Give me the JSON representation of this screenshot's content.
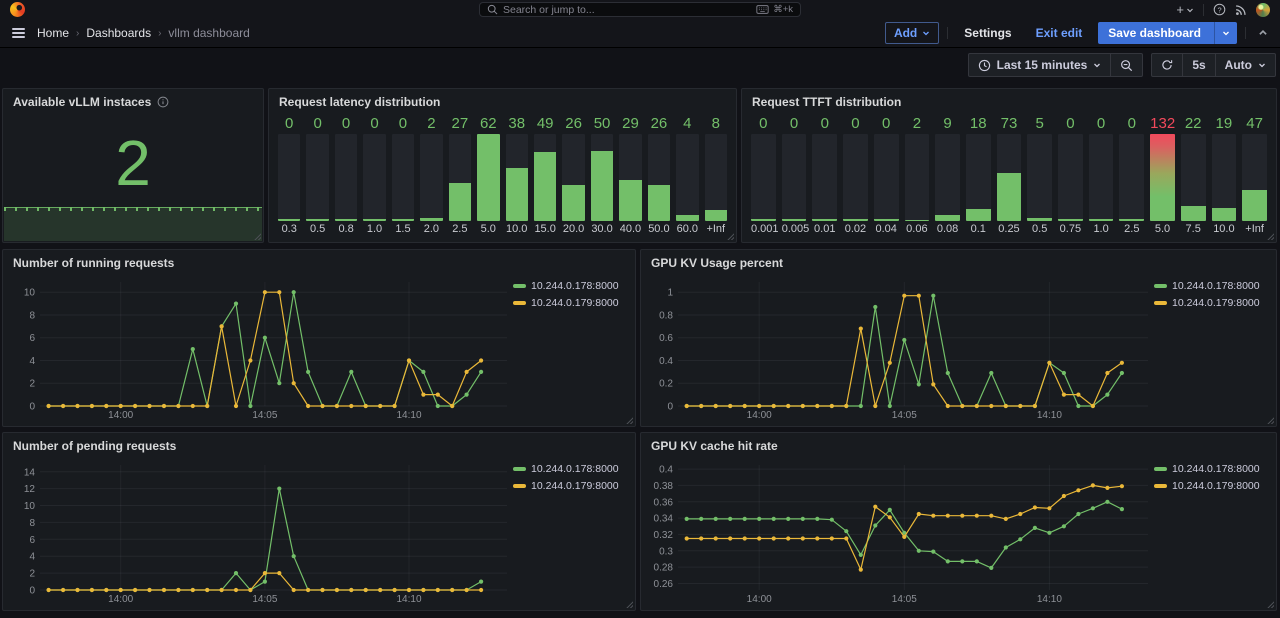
{
  "nav": {
    "search_placeholder": "Search or jump to...",
    "shortcut": "⌘+k",
    "breadcrumb": [
      "Home",
      "Dashboards",
      "vllm dashboard"
    ],
    "actions": {
      "add": "Add",
      "settings": "Settings",
      "exit_edit": "Exit edit",
      "save": "Save dashboard"
    }
  },
  "timebar": {
    "range": "Last 15 minutes",
    "interval": "5s",
    "auto": "Auto"
  },
  "colors": {
    "green": "#73BF69",
    "yellow": "#EAB839",
    "red": "#F2495C",
    "blue": "#3D71D9",
    "link_blue": "#6E9FFF",
    "panel_bg": "#181b1f",
    "canvas_bg": "#111217",
    "bar_track": "#22252b"
  },
  "chart_data": [
    {
      "type": "stat",
      "title": "Available vLLM instaces",
      "value": "2",
      "sparkline_value": 2,
      "color": "#73BF69"
    },
    {
      "type": "bar",
      "title": "Request latency distribution",
      "categories": [
        "0.3",
        "0.5",
        "0.8",
        "1.0",
        "1.5",
        "2.0",
        "2.5",
        "5.0",
        "10.0",
        "15.0",
        "20.0",
        "30.0",
        "40.0",
        "50.0",
        "60.0",
        "+Inf"
      ],
      "values": [
        0,
        0,
        0,
        0,
        0,
        2,
        27,
        62,
        38,
        49,
        26,
        50,
        29,
        26,
        4,
        8
      ],
      "max": 62,
      "gradient_index": -1,
      "bar_color": "#73BF69"
    },
    {
      "type": "bar",
      "title": "Request TTFT distribution",
      "categories": [
        "0.001",
        "0.005",
        "0.01",
        "0.02",
        "0.04",
        "0.06",
        "0.08",
        "0.1",
        "0.25",
        "0.5",
        "0.75",
        "1.0",
        "2.5",
        "5.0",
        "7.5",
        "10.0",
        "+Inf"
      ],
      "values": [
        0,
        0,
        0,
        0,
        0,
        2,
        9,
        18,
        73,
        5,
        0,
        0,
        0,
        132,
        22,
        19,
        47
      ],
      "max": 132,
      "gradient_index": 13,
      "bar_color": "#73BF69",
      "gradient_value_color": "#F2495C"
    },
    {
      "type": "line",
      "title": "Number of running requests",
      "x_start": -2.5,
      "x_step": 0.5,
      "x_domain": [
        -2.8,
        13.4
      ],
      "x_ticks": [
        {
          "v": 0,
          "label": "14:00"
        },
        {
          "v": 5,
          "label": "14:05"
        },
        {
          "v": 10,
          "label": "14:10"
        }
      ],
      "y_domain": [
        0,
        10.9
      ],
      "y_ticks": [
        {
          "v": 0,
          "label": "0"
        },
        {
          "v": 2,
          "label": "2"
        },
        {
          "v": 4,
          "label": "4"
        },
        {
          "v": 6,
          "label": "6"
        },
        {
          "v": 8,
          "label": "8"
        },
        {
          "v": 10,
          "label": "10"
        }
      ],
      "series": [
        {
          "name": "10.244.0.178:8000",
          "color": "#73BF69",
          "values": [
            0,
            0,
            0,
            0,
            0,
            0,
            0,
            0,
            0,
            0,
            5,
            0,
            7,
            9,
            0,
            6,
            2,
            10,
            3,
            0,
            0,
            3,
            0,
            0,
            0,
            4,
            3,
            0,
            0,
            1,
            3
          ]
        },
        {
          "name": "10.244.0.179:8000",
          "color": "#EAB839",
          "values": [
            0,
            0,
            0,
            0,
            0,
            0,
            0,
            0,
            0,
            0,
            0,
            0,
            7,
            0,
            4,
            10,
            10,
            2,
            0,
            0,
            0,
            0,
            0,
            0,
            0,
            4,
            1,
            1,
            0,
            3,
            4
          ]
        }
      ]
    },
    {
      "type": "line",
      "title": "GPU KV Usage percent",
      "x_start": -2.5,
      "x_step": 0.5,
      "x_domain": [
        -2.8,
        13.4
      ],
      "x_ticks": [
        {
          "v": 0,
          "label": "14:00"
        },
        {
          "v": 5,
          "label": "14:05"
        },
        {
          "v": 10,
          "label": "14:10"
        }
      ],
      "y_domain": [
        0,
        1.09
      ],
      "y_ticks": [
        {
          "v": 0,
          "label": "0"
        },
        {
          "v": 0.2,
          "label": "0.2"
        },
        {
          "v": 0.4,
          "label": "0.4"
        },
        {
          "v": 0.6,
          "label": "0.6"
        },
        {
          "v": 0.8,
          "label": "0.8"
        },
        {
          "v": 1,
          "label": "1"
        }
      ],
      "series": [
        {
          "name": "10.244.0.178:8000",
          "color": "#73BF69",
          "values": [
            0,
            0,
            0,
            0,
            0,
            0,
            0,
            0,
            0,
            0,
            0,
            0,
            0,
            0.87,
            0,
            0.58,
            0.19,
            0.97,
            0.29,
            0,
            0,
            0.29,
            0,
            0,
            0,
            0.38,
            0.29,
            0,
            0,
            0.1,
            0.29
          ]
        },
        {
          "name": "10.244.0.179:8000",
          "color": "#EAB839",
          "values": [
            0,
            0,
            0,
            0,
            0,
            0,
            0,
            0,
            0,
            0,
            0,
            0,
            0.68,
            0,
            0.38,
            0.97,
            0.97,
            0.19,
            0,
            0,
            0,
            0,
            0,
            0,
            0,
            0.38,
            0.1,
            0.1,
            0,
            0.29,
            0.38
          ]
        }
      ]
    },
    {
      "type": "line",
      "title": "Number of pending requests",
      "x_start": -2.5,
      "x_step": 0.5,
      "x_domain": [
        -2.8,
        13.4
      ],
      "x_ticks": [
        {
          "v": 0,
          "label": "14:00"
        },
        {
          "v": 5,
          "label": "14:05"
        },
        {
          "v": 10,
          "label": "14:10"
        }
      ],
      "y_domain": [
        0,
        14.8
      ],
      "y_ticks": [
        {
          "v": 0,
          "label": "0"
        },
        {
          "v": 2,
          "label": "2"
        },
        {
          "v": 4,
          "label": "4"
        },
        {
          "v": 6,
          "label": "6"
        },
        {
          "v": 8,
          "label": "8"
        },
        {
          "v": 10,
          "label": "10"
        },
        {
          "v": 12,
          "label": "12"
        },
        {
          "v": 14,
          "label": "14"
        }
      ],
      "series": [
        {
          "name": "10.244.0.178:8000",
          "color": "#73BF69",
          "values": [
            0,
            0,
            0,
            0,
            0,
            0,
            0,
            0,
            0,
            0,
            0,
            0,
            0,
            2,
            0,
            1,
            12,
            4,
            0,
            0,
            0,
            0,
            0,
            0,
            0,
            0,
            0,
            0,
            0,
            0,
            1
          ]
        },
        {
          "name": "10.244.0.179:8000",
          "color": "#EAB839",
          "values": [
            0,
            0,
            0,
            0,
            0,
            0,
            0,
            0,
            0,
            0,
            0,
            0,
            0,
            0,
            0,
            2,
            2,
            0,
            0,
            0,
            0,
            0,
            0,
            0,
            0,
            0,
            0,
            0,
            0,
            0,
            0
          ]
        }
      ]
    },
    {
      "type": "line",
      "title": "GPU KV cache hit rate",
      "x_start": -2.5,
      "x_step": 0.5,
      "x_domain": [
        -2.8,
        13.4
      ],
      "x_ticks": [
        {
          "v": 0,
          "label": "14:00"
        },
        {
          "v": 5,
          "label": "14:05"
        },
        {
          "v": 10,
          "label": "14:10"
        }
      ],
      "y_domain": [
        0.252,
        0.405
      ],
      "y_ticks": [
        {
          "v": 0.26,
          "label": "0.26"
        },
        {
          "v": 0.28,
          "label": "0.28"
        },
        {
          "v": 0.3,
          "label": "0.3"
        },
        {
          "v": 0.32,
          "label": "0.32"
        },
        {
          "v": 0.34,
          "label": "0.34"
        },
        {
          "v": 0.36,
          "label": "0.36"
        },
        {
          "v": 0.38,
          "label": "0.38"
        },
        {
          "v": 0.4,
          "label": "0.4"
        }
      ],
      "series": [
        {
          "name": "10.244.0.178:8000",
          "color": "#73BF69",
          "values": [
            0.339,
            0.339,
            0.339,
            0.339,
            0.339,
            0.339,
            0.339,
            0.339,
            0.339,
            0.339,
            0.338,
            0.324,
            0.295,
            0.331,
            0.35,
            0.322,
            0.3,
            0.299,
            0.287,
            0.287,
            0.287,
            0.279,
            0.304,
            0.314,
            0.328,
            0.322,
            0.33,
            0.345,
            0.352,
            0.36,
            0.351
          ]
        },
        {
          "name": "10.244.0.179:8000",
          "color": "#EAB839",
          "values": [
            0.315,
            0.315,
            0.315,
            0.315,
            0.315,
            0.315,
            0.315,
            0.315,
            0.315,
            0.315,
            0.315,
            0.315,
            0.277,
            0.354,
            0.341,
            0.317,
            0.345,
            0.343,
            0.343,
            0.343,
            0.343,
            0.343,
            0.339,
            0.345,
            0.353,
            0.352,
            0.367,
            0.374,
            0.38,
            0.377,
            0.379
          ]
        }
      ]
    }
  ]
}
